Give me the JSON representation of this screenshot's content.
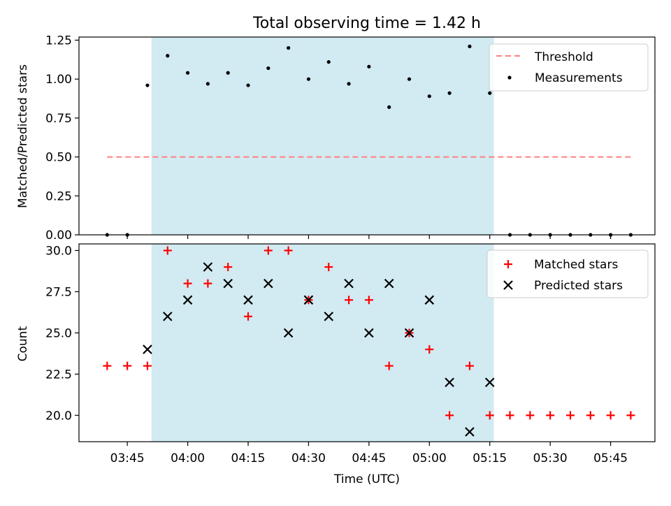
{
  "chart_data": {
    "title": "Total observing time = 1.42 h",
    "xlabel": "Time (UTC)",
    "x_ticks": [
      "03:45",
      "04:00",
      "04:15",
      "04:30",
      "04:45",
      "05:00",
      "05:15",
      "05:30",
      "05:45"
    ],
    "x_tick_minutes": [
      225,
      240,
      255,
      270,
      285,
      300,
      315,
      330,
      345
    ],
    "xlim": [
      "03:33",
      "05:56"
    ],
    "observing_window": [
      "03:51",
      "05:16"
    ],
    "colors": {
      "window": "#add8e6",
      "threshold": "#ff7f7f",
      "matched": "#ff0000",
      "predicted": "#000000",
      "measurement": "#000000"
    },
    "panels": [
      {
        "type": "scatter",
        "ylabel": "Matched/Predicted stars",
        "ylim": [
          0,
          1.27
        ],
        "y_ticks": [
          "0.00",
          "0.25",
          "0.50",
          "0.75",
          "1.00",
          "1.25"
        ],
        "y_tick_values": [
          0,
          0.25,
          0.5,
          0.75,
          1.0,
          1.25
        ],
        "legend_position": "top-right",
        "threshold": {
          "name": "Threshold",
          "y": 0.5,
          "x_range": [
            "03:40",
            "05:50"
          ]
        },
        "series": [
          {
            "name": "Measurements",
            "x": [
              "03:40",
              "03:45",
              "03:50",
              "03:55",
              "04:00",
              "04:05",
              "04:10",
              "04:15",
              "04:20",
              "04:25",
              "04:30",
              "04:35",
              "04:40",
              "04:45",
              "04:50",
              "04:55",
              "05:00",
              "05:05",
              "05:10",
              "05:15",
              "05:20",
              "05:25",
              "05:30",
              "05:35",
              "05:40",
              "05:45",
              "05:50"
            ],
            "y": [
              0,
              0,
              0.96,
              1.15,
              1.04,
              0.97,
              1.04,
              0.96,
              1.07,
              1.2,
              1.0,
              1.11,
              0.97,
              1.08,
              0.82,
              1.0,
              0.89,
              0.91,
              1.21,
              0.91,
              0,
              0,
              0,
              0,
              0,
              0,
              0
            ]
          }
        ]
      },
      {
        "type": "scatter",
        "ylabel": "Count",
        "ylim": [
          18.4,
          30.4
        ],
        "y_ticks": [
          "20.0",
          "22.5",
          "25.0",
          "27.5",
          "30.0"
        ],
        "y_tick_values": [
          20,
          22.5,
          25,
          27.5,
          30
        ],
        "legend_position": "top-right",
        "series": [
          {
            "name": "Matched stars",
            "x": [
              "03:40",
              "03:45",
              "03:50",
              "03:55",
              "04:00",
              "04:05",
              "04:10",
              "04:15",
              "04:20",
              "04:25",
              "04:30",
              "04:35",
              "04:40",
              "04:45",
              "04:50",
              "04:55",
              "05:00",
              "05:05",
              "05:10",
              "05:15",
              "05:20",
              "05:25",
              "05:30",
              "05:35",
              "05:40",
              "05:45",
              "05:50"
            ],
            "y": [
              23,
              23,
              23,
              30,
              28,
              28,
              29,
              26,
              30,
              30,
              27,
              29,
              27,
              27,
              23,
              25,
              24,
              20,
              23,
              20,
              20,
              20,
              20,
              20,
              20,
              20,
              20
            ]
          },
          {
            "name": "Predicted stars",
            "x": [
              "03:50",
              "03:55",
              "04:00",
              "04:05",
              "04:10",
              "04:15",
              "04:20",
              "04:25",
              "04:30",
              "04:35",
              "04:40",
              "04:45",
              "04:50",
              "04:55",
              "05:00",
              "05:05",
              "05:10",
              "05:15"
            ],
            "y": [
              24,
              26,
              27,
              29,
              28,
              27,
              28,
              25,
              27,
              26,
              28,
              25,
              28,
              25,
              27,
              22,
              19,
              22
            ]
          }
        ]
      }
    ]
  }
}
